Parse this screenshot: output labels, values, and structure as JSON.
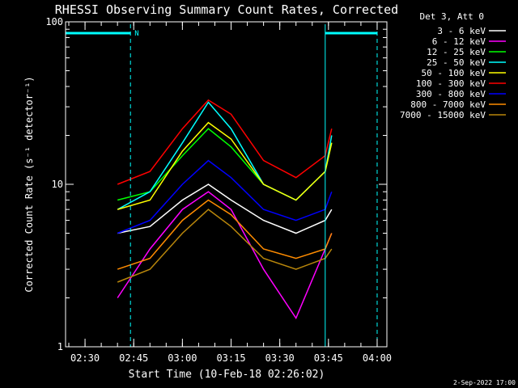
{
  "chart_data": {
    "type": "line",
    "title": "RHESSI Observing Summary Count Rates, Corrected",
    "xlabel": "Start Time (10-Feb-18 02:26:02)",
    "ylabel": "Corrected Count Rate (s⁻¹ detector⁻¹)",
    "y_scale": "log",
    "ylim": [
      1,
      100
    ],
    "xlim": [
      "02:24",
      "04:03"
    ],
    "y_ticks": [
      {
        "value": 1,
        "label": "1"
      },
      {
        "value": 10,
        "label": "10"
      },
      {
        "value": 100,
        "label": "100"
      }
    ],
    "x_ticks": [
      {
        "value": "02:30",
        "label": "02:30"
      },
      {
        "value": "02:45",
        "label": "02:45"
      },
      {
        "value": "03:00",
        "label": "03:00"
      },
      {
        "value": "03:15",
        "label": "03:15"
      },
      {
        "value": "03:30",
        "label": "03:30"
      },
      {
        "value": "03:45",
        "label": "03:45"
      },
      {
        "value": "04:00",
        "label": "04:00"
      }
    ],
    "legend_header": "Det 3, Att 0",
    "legend_position": "right",
    "grid": false,
    "series": [
      {
        "name": "3 - 6 keV",
        "color": "#ffffff",
        "x": [
          "02:40",
          "02:50",
          "03:00",
          "03:08",
          "03:15",
          "03:25",
          "03:35",
          "03:44",
          "03:46"
        ],
        "values": [
          5,
          5.5,
          8,
          10,
          8,
          6,
          5,
          6,
          7
        ]
      },
      {
        "name": "6 - 12 keV",
        "color": "#ff00ff",
        "x": [
          "02:40",
          "02:50",
          "03:00",
          "03:08",
          "03:15",
          "03:25",
          "03:35",
          "03:44",
          "03:46"
        ],
        "values": [
          2,
          4,
          7,
          9,
          7,
          3,
          1.5,
          4,
          5
        ]
      },
      {
        "name": "12 - 25 keV",
        "color": "#00ff00",
        "x": [
          "02:40",
          "02:50",
          "03:00",
          "03:08",
          "03:15",
          "03:25",
          "03:35",
          "03:44",
          "03:46"
        ],
        "values": [
          8,
          9,
          15,
          22,
          17,
          10,
          8,
          12,
          18
        ]
      },
      {
        "name": "25 - 50 keV",
        "color": "#00ffff",
        "x": [
          "02:40",
          "02:50",
          "03:00",
          "03:08",
          "03:15",
          "03:25",
          "03:35",
          "03:44",
          "03:46"
        ],
        "values": [
          7,
          9,
          18,
          32,
          22,
          10,
          8,
          12,
          20
        ]
      },
      {
        "name": "50 - 100 keV",
        "color": "#ffff00",
        "x": [
          "02:40",
          "02:50",
          "03:00",
          "03:08",
          "03:15",
          "03:25",
          "03:35",
          "03:44",
          "03:46"
        ],
        "values": [
          7,
          8,
          16,
          24,
          19,
          10,
          8,
          12,
          18
        ]
      },
      {
        "name": "100 - 300 keV",
        "color": "#ff0000",
        "x": [
          "02:40",
          "02:50",
          "03:00",
          "03:08",
          "03:15",
          "03:25",
          "03:35",
          "03:44",
          "03:46"
        ],
        "values": [
          10,
          12,
          22,
          33,
          27,
          14,
          11,
          15,
          22
        ]
      },
      {
        "name": "300 - 800 keV",
        "color": "#0000ff",
        "x": [
          "02:40",
          "02:50",
          "03:00",
          "03:08",
          "03:15",
          "03:25",
          "03:35",
          "03:44",
          "03:46"
        ],
        "values": [
          5,
          6,
          10,
          14,
          11,
          7,
          6,
          7,
          9
        ]
      },
      {
        "name": "800 - 7000 keV",
        "color": "#ff8c00",
        "x": [
          "02:40",
          "02:50",
          "03:00",
          "03:08",
          "03:15",
          "03:25",
          "03:35",
          "03:44",
          "03:46"
        ],
        "values": [
          3,
          3.5,
          6,
          8,
          6.5,
          4,
          3.5,
          4,
          5
        ]
      },
      {
        "name": "7000 - 15000 keV",
        "color": "#b8860b",
        "x": [
          "02:40",
          "02:50",
          "03:00",
          "03:08",
          "03:15",
          "03:25",
          "03:35",
          "03:44",
          "03:46"
        ],
        "values": [
          2.5,
          3,
          5,
          7,
          5.5,
          3.5,
          3,
          3.5,
          4
        ]
      }
    ],
    "night_periods": [
      {
        "start": "02:24",
        "end": "02:44"
      },
      {
        "start": "03:44",
        "end": "04:00"
      }
    ],
    "night_label": "N",
    "colors": {
      "background": "#000000",
      "axes": "#ffffff",
      "night_marker": "#00ffff"
    }
  },
  "footer": {
    "timestamp": "2-Sep-2022 17:00"
  }
}
